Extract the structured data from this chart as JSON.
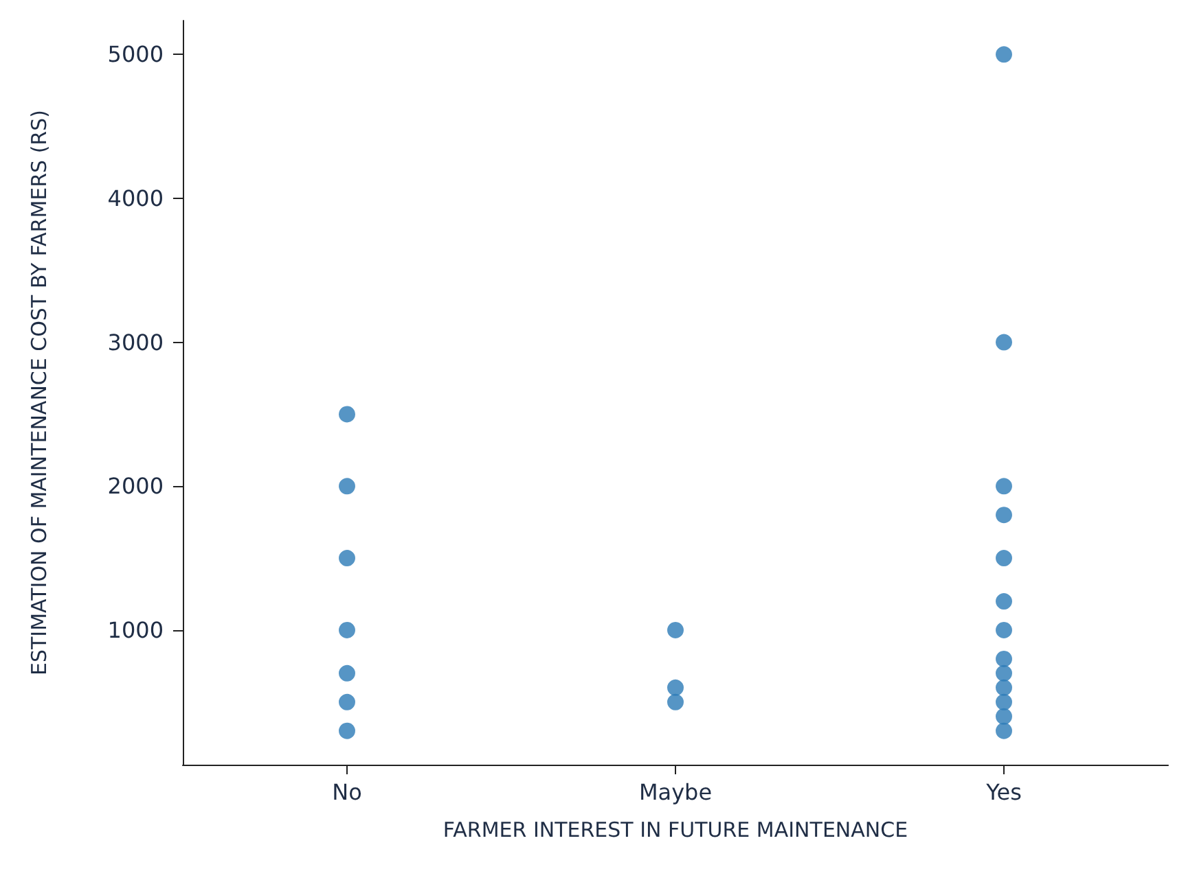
{
  "chart_data": {
    "type": "scatter",
    "xlabel": "FARMER INTEREST IN FUTURE MAINTENANCE",
    "ylabel": "ESTIMATION OF MAINTENANCE COST BY FARMERS (RS)",
    "categories": [
      "No",
      "Maybe",
      "Yes"
    ],
    "series": [
      {
        "color": "#2c7bb6",
        "x": [
          "No",
          "No",
          "No",
          "No",
          "No",
          "No",
          "No",
          "Maybe",
          "Maybe",
          "Maybe",
          "Yes",
          "Yes",
          "Yes",
          "Yes",
          "Yes",
          "Yes",
          "Yes",
          "Yes",
          "Yes",
          "Yes",
          "Yes",
          "Yes",
          "Yes"
        ],
        "values": [
          2500,
          2000,
          1500,
          1000,
          700,
          500,
          300,
          1000,
          600,
          500,
          5000,
          3000,
          2000,
          1800,
          1500,
          1200,
          1000,
          800,
          700,
          600,
          500,
          400,
          300
        ]
      }
    ],
    "ylim": [
      65,
      5235
    ],
    "yticks": [
      1000,
      2000,
      3000,
      4000,
      5000
    ],
    "grid": false,
    "marker": "circle"
  }
}
